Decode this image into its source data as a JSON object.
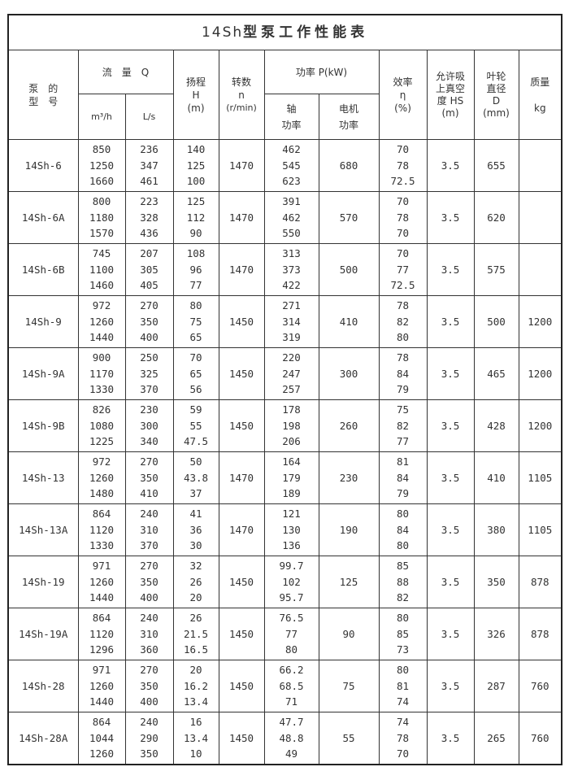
{
  "title": {
    "prefix": "14Sh",
    "text": "型泵工作性能表"
  },
  "headers": {
    "model": [
      "泵　的",
      "型　号"
    ],
    "flow": "流　量　Q",
    "flow_m3h": "m³/h",
    "flow_ls": "L/s",
    "head": [
      "扬程",
      "H",
      "(m)"
    ],
    "speed": [
      "转数",
      "n",
      "(r/min)"
    ],
    "power": "功率 P(kW)",
    "shaft_power": [
      "轴",
      "功率"
    ],
    "motor_power": [
      "电机",
      "功率"
    ],
    "efficiency": [
      "效率",
      "η",
      "(%)"
    ],
    "suction": [
      "允许吸",
      "上真空",
      "度 HS",
      "(m)"
    ],
    "impeller": [
      "叶轮",
      "直径",
      "D",
      "(mm)"
    ],
    "mass": [
      "质量",
      "kg"
    ]
  },
  "rows": [
    {
      "model": "14Sh-6",
      "q_m3h": [
        "850",
        "1250",
        "1660"
      ],
      "q_ls": [
        "236",
        "347",
        "461"
      ],
      "h": [
        "140",
        "125",
        "100"
      ],
      "n": "1470",
      "p_shaft": [
        "462",
        "545",
        "623"
      ],
      "p_motor": "680",
      "eff": [
        "70",
        "78",
        "72.5"
      ],
      "hs": "3.5",
      "d": "655",
      "mass": ""
    },
    {
      "model": "14Sh-6A",
      "q_m3h": [
        "800",
        "1180",
        "1570"
      ],
      "q_ls": [
        "223",
        "328",
        "436"
      ],
      "h": [
        "125",
        "112",
        "90"
      ],
      "n": "1470",
      "p_shaft": [
        "391",
        "462",
        "550"
      ],
      "p_motor": "570",
      "eff": [
        "70",
        "78",
        "70"
      ],
      "hs": "3.5",
      "d": "620",
      "mass": ""
    },
    {
      "model": "14Sh-6B",
      "q_m3h": [
        "745",
        "1100",
        "1460"
      ],
      "q_ls": [
        "207",
        "305",
        "405"
      ],
      "h": [
        "108",
        "96",
        "77"
      ],
      "n": "1470",
      "p_shaft": [
        "313",
        "373",
        "422"
      ],
      "p_motor": "500",
      "eff": [
        "70",
        "77",
        "72.5"
      ],
      "hs": "3.5",
      "d": "575",
      "mass": ""
    },
    {
      "model": "14Sh-9",
      "q_m3h": [
        "972",
        "1260",
        "1440"
      ],
      "q_ls": [
        "270",
        "350",
        "400"
      ],
      "h": [
        "80",
        "75",
        "65"
      ],
      "n": "1450",
      "p_shaft": [
        "271",
        "314",
        "319"
      ],
      "p_motor": "410",
      "eff": [
        "78",
        "82",
        "80"
      ],
      "hs": "3.5",
      "d": "500",
      "mass": "1200"
    },
    {
      "model": "14Sh-9A",
      "q_m3h": [
        "900",
        "1170",
        "1330"
      ],
      "q_ls": [
        "250",
        "325",
        "370"
      ],
      "h": [
        "70",
        "65",
        "56"
      ],
      "n": "1450",
      "p_shaft": [
        "220",
        "247",
        "257"
      ],
      "p_motor": "300",
      "eff": [
        "78",
        "84",
        "79"
      ],
      "hs": "3.5",
      "d": "465",
      "mass": "1200"
    },
    {
      "model": "14Sh-9B",
      "q_m3h": [
        "826",
        "1080",
        "1225"
      ],
      "q_ls": [
        "230",
        "300",
        "340"
      ],
      "h": [
        "59",
        "55",
        "47.5"
      ],
      "n": "1450",
      "p_shaft": [
        "178",
        "198",
        "206"
      ],
      "p_motor": "260",
      "eff": [
        "75",
        "82",
        "77"
      ],
      "hs": "3.5",
      "d": "428",
      "mass": "1200"
    },
    {
      "model": "14Sh-13",
      "q_m3h": [
        "972",
        "1260",
        "1480"
      ],
      "q_ls": [
        "270",
        "350",
        "410"
      ],
      "h": [
        "50",
        "43.8",
        "37"
      ],
      "n": "1470",
      "p_shaft": [
        "164",
        "179",
        "189"
      ],
      "p_motor": "230",
      "eff": [
        "81",
        "84",
        "79"
      ],
      "hs": "3.5",
      "d": "410",
      "mass": "1105"
    },
    {
      "model": "14Sh-13A",
      "q_m3h": [
        "864",
        "1120",
        "1330"
      ],
      "q_ls": [
        "240",
        "310",
        "370"
      ],
      "h": [
        "41",
        "36",
        "30"
      ],
      "n": "1470",
      "p_shaft": [
        "121",
        "130",
        "136"
      ],
      "p_motor": "190",
      "eff": [
        "80",
        "84",
        "80"
      ],
      "hs": "3.5",
      "d": "380",
      "mass": "1105"
    },
    {
      "model": "14Sh-19",
      "q_m3h": [
        "971",
        "1260",
        "1440"
      ],
      "q_ls": [
        "270",
        "350",
        "400"
      ],
      "h": [
        "32",
        "26",
        "20"
      ],
      "n": "1450",
      "p_shaft": [
        "99.7",
        "102",
        "95.7"
      ],
      "p_motor": "125",
      "eff": [
        "85",
        "88",
        "82"
      ],
      "hs": "3.5",
      "d": "350",
      "mass": "878"
    },
    {
      "model": "14Sh-19A",
      "q_m3h": [
        "864",
        "1120",
        "1296"
      ],
      "q_ls": [
        "240",
        "310",
        "360"
      ],
      "h": [
        "26",
        "21.5",
        "16.5"
      ],
      "n": "1450",
      "p_shaft": [
        "76.5",
        "77",
        "80"
      ],
      "p_motor": "90",
      "eff": [
        "80",
        "85",
        "73"
      ],
      "hs": "3.5",
      "d": "326",
      "mass": "878"
    },
    {
      "model": "14Sh-28",
      "q_m3h": [
        "971",
        "1260",
        "1440"
      ],
      "q_ls": [
        "270",
        "350",
        "400"
      ],
      "h": [
        "20",
        "16.2",
        "13.4"
      ],
      "n": "1450",
      "p_shaft": [
        "66.2",
        "68.5",
        "71"
      ],
      "p_motor": "75",
      "eff": [
        "80",
        "81",
        "74"
      ],
      "hs": "3.5",
      "d": "287",
      "mass": "760"
    },
    {
      "model": "14Sh-28A",
      "q_m3h": [
        "864",
        "1044",
        "1260"
      ],
      "q_ls": [
        "240",
        "290",
        "350"
      ],
      "h": [
        "16",
        "13.4",
        "10"
      ],
      "n": "1450",
      "p_shaft": [
        "47.7",
        "48.8",
        "49"
      ],
      "p_motor": "55",
      "eff": [
        "74",
        "78",
        "70"
      ],
      "hs": "3.5",
      "d": "265",
      "mass": "760"
    }
  ]
}
